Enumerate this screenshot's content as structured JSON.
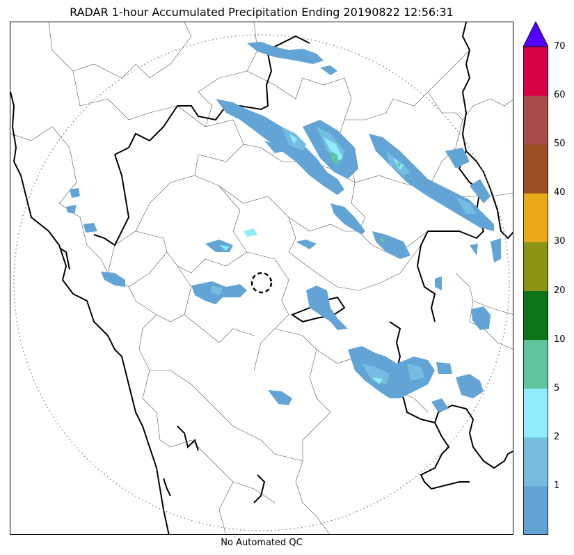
{
  "title": "RADAR 1-hour Accumulated Precipitation Ending 20190822 12:56:31",
  "subtitle": "No Automated QC",
  "colorbar": {
    "levels": [
      {
        "label": "",
        "color": "#63a4d6"
      },
      {
        "label": "1",
        "color": "#74bde1"
      },
      {
        "label": "2",
        "color": "#90ebfb"
      },
      {
        "label": "5",
        "color": "#5ec49b"
      },
      {
        "label": "10",
        "color": "#0d7319"
      },
      {
        "label": "20",
        "color": "#8b9415"
      },
      {
        "label": "30",
        "color": "#e9a818"
      },
      {
        "label": "40",
        "color": "#9b4d24"
      },
      {
        "label": "50",
        "color": "#a84b47"
      },
      {
        "label": "60",
        "color": "#d70044"
      }
    ],
    "top_label": "70",
    "over_color": "#5200ff"
  },
  "map": {
    "range_ring": "dotted",
    "radar_site": "dashed-circle",
    "precip_colors": {
      "light": "#63a4d6",
      "medium": "#74bde1",
      "cyan": "#90ebfb",
      "green": "#5ec49b"
    }
  }
}
